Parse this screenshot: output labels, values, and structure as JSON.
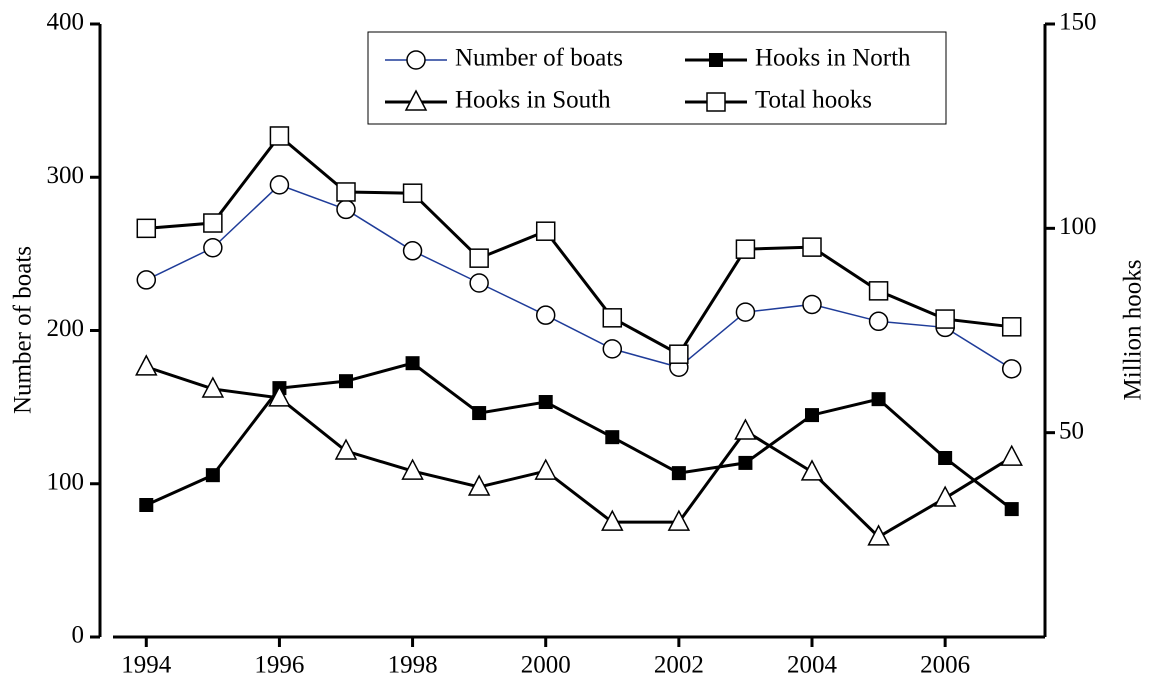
{
  "chart_data": {
    "type": "line",
    "x": [
      1994,
      1995,
      1996,
      1997,
      1998,
      1999,
      2000,
      2001,
      2002,
      2003,
      2004,
      2005,
      2006,
      2007
    ],
    "xlim": [
      1993.5,
      2007.5
    ],
    "xticks": [
      1994,
      1996,
      1998,
      2000,
      2002,
      2004,
      2006
    ],
    "ylim": [
      0,
      400
    ],
    "yticks": [
      0,
      100,
      200,
      300,
      400
    ],
    "y2lim": [
      0,
      150
    ],
    "y2ticks": [
      50,
      100,
      150
    ],
    "ylabel": "Number of boats",
    "y2label": "Million hooks",
    "series": [
      {
        "name": "Number of boats",
        "color": "#1f3c99",
        "marker": "circle",
        "values": [
          233,
          254,
          295,
          279,
          252,
          231,
          210,
          188,
          176,
          212,
          217,
          206,
          202,
          175
        ]
      },
      {
        "name": "Hooks in North",
        "color": "#000000",
        "marker": "filled-square",
        "axis": "y2",
        "values": [
          32.3,
          39.6,
          60.9,
          62.6,
          67.0,
          54.8,
          57.5,
          48.9,
          40.1,
          42.6,
          54.3,
          58.2,
          43.8,
          31.3
        ]
      },
      {
        "name": "Hooks in South",
        "color": "#000000",
        "marker": "triangle",
        "axis": "y2",
        "values": [
          66.1,
          60.7,
          58.5,
          45.5,
          40.6,
          36.7,
          40.6,
          28.1,
          28.1,
          50.4,
          40.4,
          24.5,
          34.0,
          44.0
        ]
      },
      {
        "name": "Total hooks",
        "color": "#000000",
        "marker": "square",
        "axis": "y2",
        "values": [
          100,
          101.3,
          122.6,
          108.9,
          108.6,
          92.7,
          99.3,
          78.1,
          69.2,
          94.9,
          95.4,
          84.7,
          77.8,
          75.9
        ]
      }
    ]
  }
}
